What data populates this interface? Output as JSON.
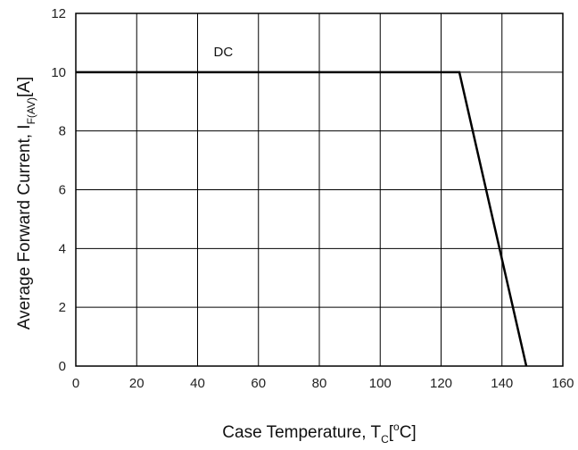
{
  "chart_data": {
    "type": "line",
    "series": [
      {
        "name": "",
        "x": [
          0,
          126,
          148
        ],
        "y": [
          10,
          10,
          0
        ]
      }
    ],
    "xlim": [
      0,
      160
    ],
    "ylim": [
      0,
      12
    ],
    "x_ticks": [
      "0",
      "20",
      "40",
      "60",
      "80",
      "100",
      "120",
      "140",
      "160"
    ],
    "y_ticks": [
      "0",
      "2",
      "4",
      "6",
      "8",
      "10",
      "12"
    ],
    "xlabel": {
      "main": "Case Temperature, T",
      "sub": "C",
      "unit_open": "[",
      "degree": "o",
      "unit_close": "C]"
    },
    "ylabel": {
      "main": "Average Forward Current, I",
      "sub": "F(AV)",
      "unit": "[A]"
    },
    "annotation": "DC",
    "annotation_x": 40,
    "annotation_y": 10.6,
    "grid": true,
    "line_color": "#000000",
    "grid_color": "#000000"
  }
}
